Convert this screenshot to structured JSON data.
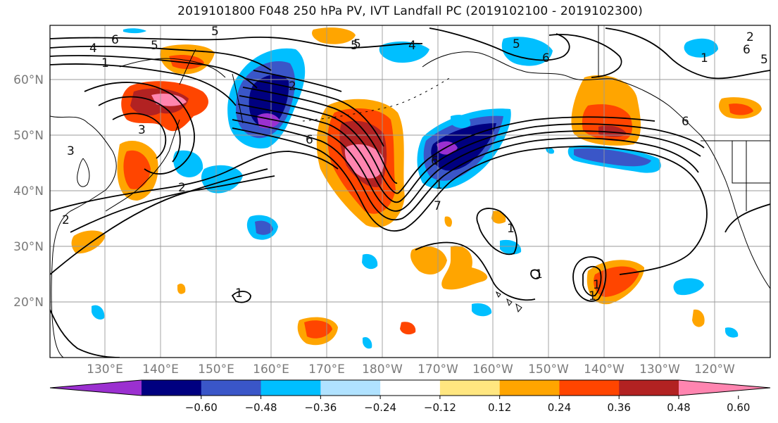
{
  "title": "2019101800 F048 250 hPa PV, IVT Landfall PC (2019102100 - 2019102300)",
  "map": {
    "lat_ticks": [
      "20°N",
      "30°N",
      "40°N",
      "50°N",
      "60°N"
    ],
    "lon_ticks": [
      "130°E",
      "140°E",
      "150°E",
      "160°E",
      "170°E",
      "180°W",
      "170°W",
      "160°W",
      "150°W",
      "140°W",
      "130°W",
      "120°W"
    ],
    "contour_labels": [
      "6",
      "5",
      "4",
      "1",
      "5",
      "2",
      "4",
      "5",
      "6",
      "5",
      "6",
      "1",
      "3",
      "2",
      "6",
      "3",
      "2",
      "2",
      "1",
      "1",
      "1",
      "1",
      "6",
      "7",
      "1",
      "5",
      "6",
      "1",
      "5"
    ],
    "colors": {
      "coast": "#000000",
      "grid": "#9a9a9a",
      "contour": "#000000"
    }
  },
  "colorbar": {
    "ticks": [
      "−0.60",
      "−0.48",
      "−0.36",
      "−0.24",
      "−0.12",
      "0.12",
      "0.24",
      "0.36",
      "0.48",
      "0.60"
    ],
    "colors": [
      "#9b30d0",
      "#000080",
      "#3a56c8",
      "#00bfff",
      "#b0e2ff",
      "#ffffff",
      "#ffe680",
      "#ffa500",
      "#ff4500",
      "#b22222",
      "#ff85b0"
    ]
  }
}
